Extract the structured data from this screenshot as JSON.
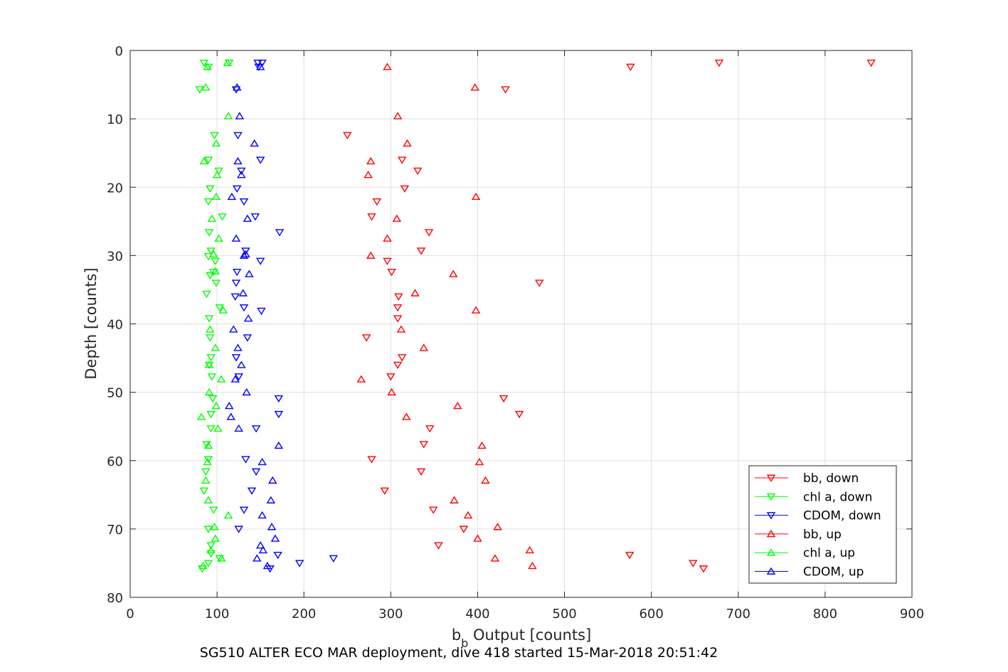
{
  "chart_data": {
    "type": "scatter",
    "xlabel_main": "b",
    "xlabel_sub": "b",
    "xlabel_rest": " Output [counts]",
    "ylabel": "Depth [counts]",
    "caption": "SG510 ALTER ECO MAR deployment, dive 418 started 15-Mar-2018 20:51:42",
    "xlim": [
      0,
      900
    ],
    "ylim": [
      0,
      80
    ],
    "y_reversed": true,
    "grid": true,
    "legend_position": "bottom-right",
    "x_ticks": [
      "0",
      "100",
      "200",
      "300",
      "400",
      "500",
      "600",
      "700",
      "800",
      "900"
    ],
    "y_ticks": [
      "0",
      "10",
      "20",
      "30",
      "40",
      "50",
      "60",
      "70",
      "80"
    ],
    "series": [
      {
        "name": "bb, down",
        "color": "#ff0000",
        "marker": "down",
        "points": [
          [
            853,
            1.8
          ],
          [
            678,
            1.8
          ],
          [
            576,
            2.4
          ],
          [
            432,
            5.7
          ],
          [
            250,
            12.4
          ],
          [
            313,
            16.0
          ],
          [
            331,
            17.6
          ],
          [
            316,
            20.2
          ],
          [
            284,
            22.1
          ],
          [
            278,
            24.3
          ],
          [
            344,
            26.6
          ],
          [
            335,
            29.3
          ],
          [
            296,
            30.8
          ],
          [
            301,
            32.4
          ],
          [
            471,
            34.0
          ],
          [
            309,
            36.0
          ],
          [
            308,
            37.6
          ],
          [
            308,
            39.2
          ],
          [
            272,
            42.0
          ],
          [
            313,
            44.9
          ],
          [
            308,
            46.0
          ],
          [
            300,
            47.7
          ],
          [
            430,
            50.9
          ],
          [
            448,
            53.2
          ],
          [
            345,
            55.3
          ],
          [
            338,
            57.6
          ],
          [
            278,
            59.8
          ],
          [
            335,
            61.6
          ],
          [
            293,
            64.4
          ],
          [
            349,
            67.2
          ],
          [
            384,
            70.0
          ],
          [
            355,
            72.4
          ],
          [
            575,
            73.8
          ],
          [
            648,
            75.0
          ],
          [
            660,
            75.8
          ]
        ]
      },
      {
        "name": "chl a, down",
        "color": "#00ff00",
        "marker": "down",
        "points": [
          [
            114,
            1.8
          ],
          [
            85,
            1.8
          ],
          [
            90,
            2.4
          ],
          [
            80,
            5.7
          ],
          [
            97,
            12.4
          ],
          [
            90,
            16.0
          ],
          [
            102,
            17.6
          ],
          [
            92,
            20.2
          ],
          [
            90,
            22.1
          ],
          [
            106,
            24.3
          ],
          [
            91,
            26.6
          ],
          [
            93,
            29.3
          ],
          [
            90,
            30.1
          ],
          [
            98,
            30.8
          ],
          [
            96,
            32.4
          ],
          [
            92,
            32.9
          ],
          [
            99,
            34.0
          ],
          [
            88,
            35.6
          ],
          [
            103,
            37.6
          ],
          [
            91,
            39.2
          ],
          [
            92,
            42.0
          ],
          [
            93,
            44.9
          ],
          [
            91,
            46.0
          ],
          [
            94,
            47.7
          ],
          [
            95,
            50.9
          ],
          [
            93,
            53.2
          ],
          [
            93,
            55.3
          ],
          [
            88,
            57.6
          ],
          [
            90,
            59.8
          ],
          [
            87,
            61.6
          ],
          [
            85,
            64.4
          ],
          [
            96,
            67.2
          ],
          [
            90,
            70.0
          ],
          [
            93,
            72.4
          ],
          [
            93,
            73.6
          ],
          [
            90,
            75.0
          ],
          [
            83,
            75.8
          ],
          [
            103,
            74.3
          ]
        ]
      },
      {
        "name": "CDOM, down",
        "color": "#0000ff",
        "marker": "down",
        "points": [
          [
            152,
            1.8
          ],
          [
            147,
            1.8
          ],
          [
            148,
            2.4
          ],
          [
            122,
            5.7
          ],
          [
            124,
            12.4
          ],
          [
            150,
            16.0
          ],
          [
            128,
            17.6
          ],
          [
            123,
            20.2
          ],
          [
            131,
            22.1
          ],
          [
            144,
            24.3
          ],
          [
            172,
            26.6
          ],
          [
            133,
            29.3
          ],
          [
            150,
            30.8
          ],
          [
            123,
            32.4
          ],
          [
            122,
            34.0
          ],
          [
            121,
            36.0
          ],
          [
            131,
            37.6
          ],
          [
            151,
            38.1
          ],
          [
            135,
            42.0
          ],
          [
            122,
            44.9
          ],
          [
            125,
            47.7
          ],
          [
            171,
            50.9
          ],
          [
            171,
            53.2
          ],
          [
            145,
            55.3
          ],
          [
            133,
            59.8
          ],
          [
            145,
            61.6
          ],
          [
            140,
            64.4
          ],
          [
            131,
            67.2
          ],
          [
            125,
            70.0
          ],
          [
            170,
            73.8
          ],
          [
            195,
            75.0
          ],
          [
            234,
            74.3
          ],
          [
            161,
            75.8
          ]
        ]
      },
      {
        "name": "bb, up",
        "color": "#ff0000",
        "marker": "up",
        "points": [
          [
            296,
            2.4
          ],
          [
            397,
            5.4
          ],
          [
            308,
            9.6
          ],
          [
            319,
            13.6
          ],
          [
            277,
            16.2
          ],
          [
            274,
            18.2
          ],
          [
            398,
            21.4
          ],
          [
            307,
            24.6
          ],
          [
            296,
            27.5
          ],
          [
            277,
            30.0
          ],
          [
            372,
            32.7
          ],
          [
            328,
            35.5
          ],
          [
            398,
            38.0
          ],
          [
            312,
            40.8
          ],
          [
            338,
            43.5
          ],
          [
            266,
            48.1
          ],
          [
            301,
            50.0
          ],
          [
            377,
            52.0
          ],
          [
            318,
            53.6
          ],
          [
            405,
            57.8
          ],
          [
            402,
            60.2
          ],
          [
            409,
            62.9
          ],
          [
            373,
            65.8
          ],
          [
            389,
            68.0
          ],
          [
            423,
            69.7
          ],
          [
            400,
            71.4
          ],
          [
            460,
            73.1
          ],
          [
            420,
            74.3
          ],
          [
            463,
            75.4
          ]
        ]
      },
      {
        "name": "chl a, up",
        "color": "#00ff00",
        "marker": "up",
        "points": [
          [
            112,
            1.8
          ],
          [
            89,
            2.4
          ],
          [
            87,
            5.4
          ],
          [
            113,
            9.6
          ],
          [
            99,
            13.6
          ],
          [
            85,
            16.2
          ],
          [
            100,
            18.2
          ],
          [
            99,
            21.4
          ],
          [
            94,
            24.6
          ],
          [
            102,
            27.5
          ],
          [
            96,
            29.8
          ],
          [
            98,
            32.3
          ],
          [
            107,
            38.0
          ],
          [
            92,
            40.8
          ],
          [
            98,
            43.5
          ],
          [
            91,
            46.0
          ],
          [
            105,
            48.1
          ],
          [
            91,
            50.0
          ],
          [
            99,
            52.0
          ],
          [
            82,
            53.6
          ],
          [
            101,
            55.3
          ],
          [
            90,
            57.8
          ],
          [
            89,
            60.2
          ],
          [
            87,
            62.9
          ],
          [
            90,
            65.8
          ],
          [
            113,
            68.0
          ],
          [
            97,
            69.7
          ],
          [
            98,
            71.4
          ],
          [
            93,
            73.1
          ],
          [
            105,
            74.3
          ],
          [
            84,
            75.4
          ]
        ]
      },
      {
        "name": "CDOM, up",
        "color": "#0000ff",
        "marker": "up",
        "points": [
          [
            150,
            2.4
          ],
          [
            123,
            5.4
          ],
          [
            126,
            9.6
          ],
          [
            143,
            13.6
          ],
          [
            124,
            16.2
          ],
          [
            128,
            18.2
          ],
          [
            117,
            21.4
          ],
          [
            135,
            24.6
          ],
          [
            122,
            27.5
          ],
          [
            133,
            29.8
          ],
          [
            131,
            30.0
          ],
          [
            137,
            32.7
          ],
          [
            130,
            35.5
          ],
          [
            136,
            39.2
          ],
          [
            119,
            40.8
          ],
          [
            124,
            43.5
          ],
          [
            128,
            46.0
          ],
          [
            121,
            48.1
          ],
          [
            134,
            50.0
          ],
          [
            114,
            52.0
          ],
          [
            116,
            53.6
          ],
          [
            125,
            55.3
          ],
          [
            171,
            57.8
          ],
          [
            152,
            60.2
          ],
          [
            164,
            62.9
          ],
          [
            162,
            65.8
          ],
          [
            152,
            68.0
          ],
          [
            163,
            69.7
          ],
          [
            167,
            71.4
          ],
          [
            150,
            72.4
          ],
          [
            153,
            73.1
          ],
          [
            146,
            74.3
          ],
          [
            158,
            75.4
          ]
        ]
      }
    ]
  }
}
